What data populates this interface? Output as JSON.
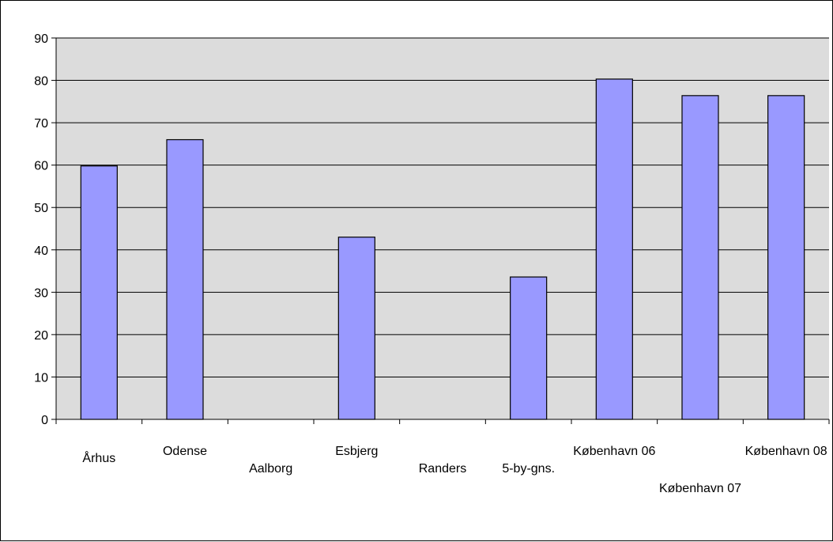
{
  "chart_data": {
    "type": "bar",
    "title": "",
    "xlabel": "",
    "ylabel": "",
    "categories": [
      "Århus",
      "Odense",
      "Aalborg",
      "Esbjerg",
      "Randers",
      "5-by-gns.",
      "København 06",
      "København 07",
      "København 08"
    ],
    "values": [
      59.8,
      66.0,
      null,
      43.0,
      null,
      33.6,
      80.3,
      76.4,
      76.4
    ],
    "ylim": [
      0,
      90
    ],
    "yticks": [
      0,
      10,
      20,
      30,
      40,
      50,
      60,
      70,
      80,
      90
    ],
    "grid": true,
    "legend": "none",
    "colors": {
      "plot_background": "#dcdcdc",
      "bar_fill": "#9999ff",
      "bar_stroke": "#000000",
      "gridline": "#000000"
    }
  }
}
